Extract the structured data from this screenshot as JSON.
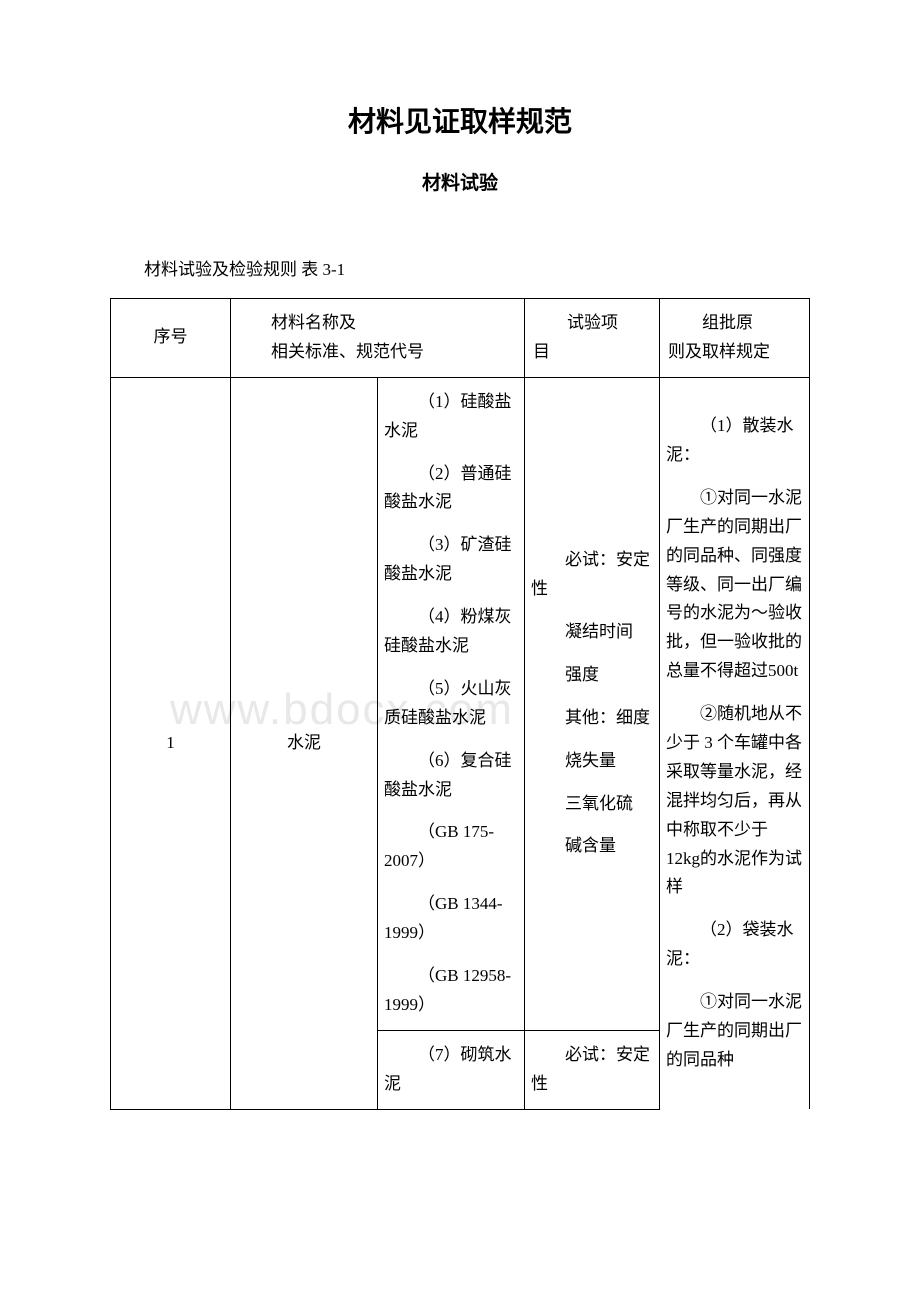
{
  "doc": {
    "title": "材料见证取样规范",
    "subtitle": "材料试验",
    "caption": "材料试验及检验规则 表 3-1",
    "watermark": "www.bdocx.com"
  },
  "header": {
    "seq": "序号",
    "name_line1": "材料名称及",
    "name_line2": "相关标准、规范代号",
    "test_prefix": "试验项",
    "test_suffix": "目",
    "rule_prefix": "组批原",
    "rule_suffix": "则及取样规定"
  },
  "row1": {
    "seq": "1",
    "material": "水泥",
    "types_a": [
      "（1）硅酸盐水泥",
      "（2）普通硅酸盐水泥",
      "（3）矿渣硅酸盐水泥",
      "（4）粉煤灰硅酸盐水泥",
      "（5）火山灰质硅酸盐水泥",
      "（6）复合硅酸盐水泥",
      "（GB 175-2007）",
      "（GB 1344-1999）",
      "（GB 12958-1999）"
    ],
    "types_b": [
      "（7）砌筑水泥"
    ],
    "tests_a": {
      "must_label": "必试：",
      "must_items": [
        "安定性",
        "凝结时间",
        "强度"
      ],
      "other_label": "其他：",
      "other_items": [
        "细度",
        "烧失量",
        "三氧化硫",
        "碱含量"
      ]
    },
    "tests_b": {
      "must_label": "必试：",
      "must_items": [
        "安定性"
      ]
    },
    "rules": [
      "（1）散装水泥：",
      "①对同一水泥厂生产的同期出厂的同品种、同强度等级、同一出厂编号的水泥为～验收批，但一验收批的总量不得超过500t",
      "②随机地从不少于 3 个车罐中各采取等量水泥，经混拌均匀后，再从中称取不少于 12kg的水泥作为试样",
      "（2）袋装水泥：",
      "①对同一水泥厂生产的同期出厂的同品种"
    ]
  }
}
